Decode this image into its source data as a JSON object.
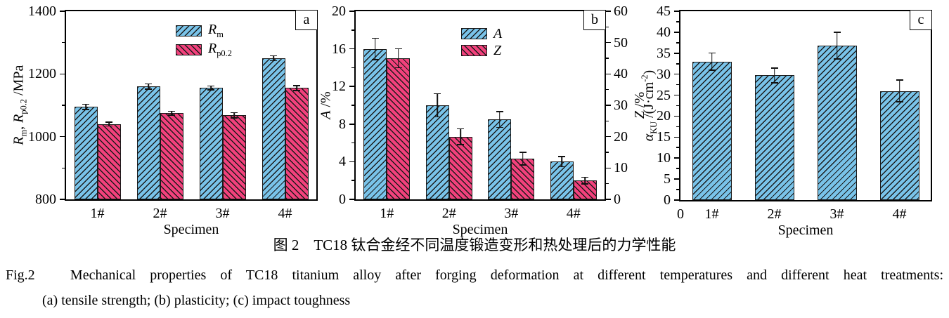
{
  "figure": {
    "caption_cn": "图 2　TC18 钛合金经不同温度锻造变形和热处理后的力学性能",
    "caption_en": "Fig.2　Mechanical properties of TC18 titanium alloy after forging deformation at different temperatures and different heat treatments:",
    "caption_sub": "(a) tensile strength; (b) plasticity; (c) impact toughness"
  },
  "colors": {
    "bar_blue": "#79C3E9",
    "bar_pink": "#F2417C",
    "axis": "#000000",
    "hatch": "#1a1a1a"
  },
  "chart_data": [
    {
      "type": "bar",
      "panel_label": "a",
      "title": "",
      "xlabel": "Specimen",
      "ylabel": "*R*_{m}, *R*_{p0.2} /MPa",
      "ylim": [
        800,
        1400
      ],
      "yticks": [
        800,
        1000,
        1200,
        1400
      ],
      "y_minor_step": 100,
      "categories": [
        "1#",
        "2#",
        "3#",
        "4#"
      ],
      "grid": false,
      "legend_position": "top-center",
      "series": [
        {
          "name": "*R*_{m}",
          "color": "bar_blue",
          "hatch": "fwd",
          "axis": "left",
          "values": [
            1095,
            1160,
            1155,
            1250
          ],
          "errors": [
            10,
            10,
            8,
            10
          ]
        },
        {
          "name": "*R*_{p0.2}",
          "color": "bar_pink",
          "hatch": "back",
          "axis": "left",
          "values": [
            1040,
            1075,
            1068,
            1155
          ],
          "errors": [
            8,
            8,
            10,
            10
          ]
        }
      ]
    },
    {
      "type": "bar",
      "panel_label": "b",
      "title": "",
      "xlabel": "Specimen",
      "ylabel": "*A* /%",
      "y2label": "*Z* /%",
      "ylim": [
        0,
        20
      ],
      "yticks": [
        0,
        4,
        8,
        12,
        16,
        20
      ],
      "y_minor_step": 2,
      "y2lim": [
        0,
        60
      ],
      "y2ticks": [
        0,
        10,
        20,
        30,
        40,
        50,
        60
      ],
      "y2_minor_step": 5,
      "categories": [
        "1#",
        "2#",
        "3#",
        "4#"
      ],
      "grid": false,
      "legend_position": "top-center",
      "series": [
        {
          "name": "*A*",
          "color": "bar_blue",
          "hatch": "fwd",
          "axis": "left",
          "values": [
            16,
            10,
            8.5,
            4
          ],
          "errors": [
            1.2,
            1.3,
            0.9,
            0.6
          ]
        },
        {
          "name": "*Z*",
          "color": "bar_pink",
          "hatch": "back",
          "axis": "right",
          "values": [
            45,
            20,
            13,
            6
          ],
          "errors": [
            3.2,
            2.7,
            2.2,
            1.2
          ]
        }
      ]
    },
    {
      "type": "bar",
      "panel_label": "c",
      "title": "",
      "xlabel": "Specimen",
      "ylabel": "*α*_{KU} /(J·cm^{-2})",
      "ylim": [
        0,
        45
      ],
      "yticks": [
        0,
        5,
        10,
        15,
        20,
        25,
        30,
        35,
        40,
        45
      ],
      "y_minor_step": 2.5,
      "categories": [
        "1#",
        "2#",
        "3#",
        "4#"
      ],
      "x_origin_label": "0",
      "grid": false,
      "series": [
        {
          "name": "*α*_{KU}",
          "color": "bar_blue",
          "hatch": "fwd",
          "axis": "left",
          "values": [
            33,
            29.7,
            36.8,
            26
          ],
          "errors": [
            2.2,
            1.9,
            3.3,
            2.7
          ]
        }
      ]
    }
  ]
}
